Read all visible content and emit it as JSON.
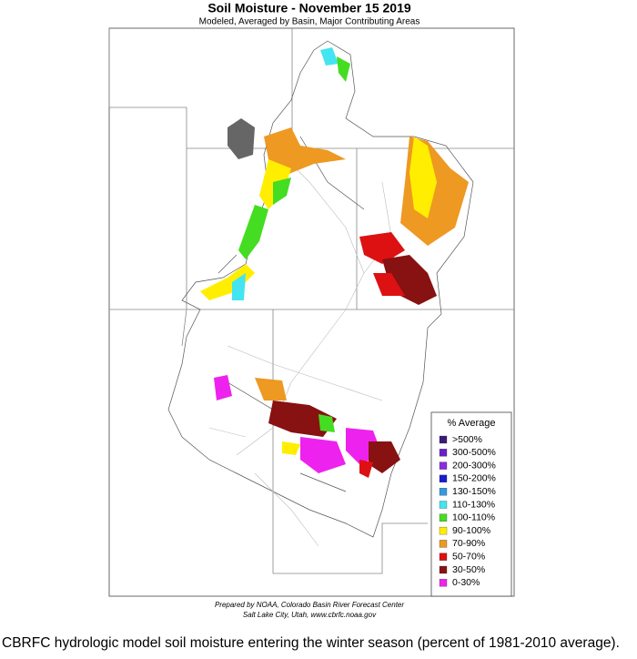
{
  "header": {
    "title": "Soil Moisture - November 15 2019",
    "subtitle": "Modeled, Averaged by Basin, Major Contributing Areas"
  },
  "legend": {
    "title": "% Average",
    "items": [
      {
        "label": ">500%",
        "color": "#3a1a7a"
      },
      {
        "label": "300-500%",
        "color": "#6a1fc8"
      },
      {
        "label": "200-300%",
        "color": "#8a2be2"
      },
      {
        "label": "150-200%",
        "color": "#1a1ad0"
      },
      {
        "label": "130-150%",
        "color": "#3399e0"
      },
      {
        "label": "110-130%",
        "color": "#44e4f0"
      },
      {
        "label": "100-110%",
        "color": "#44dd22"
      },
      {
        "label": "90-100%",
        "color": "#ffee00"
      },
      {
        "label": "70-90%",
        "color": "#ee9922"
      },
      {
        "label": "50-70%",
        "color": "#dd1111"
      },
      {
        "label": "30-50%",
        "color": "#881111"
      },
      {
        "label": "0-30%",
        "color": "#ee22ee"
      }
    ]
  },
  "credits": {
    "line1": "Prepared by NOAA, Colorado Basin River Forecast Center",
    "line2": "Salt Lake City, Utah, www.cbrfc.noaa.gov"
  },
  "caption": "CBRFC hydrologic model soil moisture entering the winter season (percent of 1981-2010 average)."
}
